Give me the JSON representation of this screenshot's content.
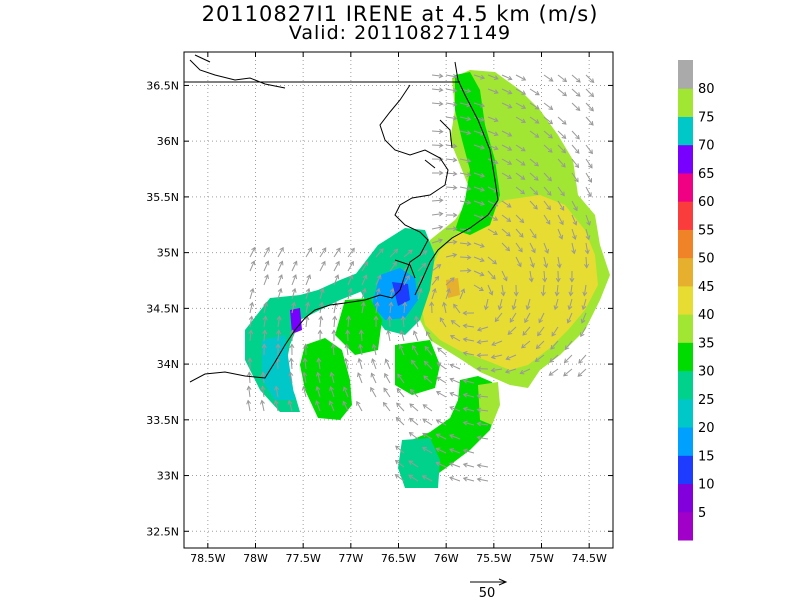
{
  "title": "20110827I1 IRENE at 4.5 km (m/s)",
  "subtitle": "Valid: 201108271149",
  "map": {
    "lon_range": [
      -78.75,
      -74.25
    ],
    "lat_range": [
      32.35,
      36.8
    ],
    "lon_ticks": [
      "78.5W",
      "78W",
      "77.5W",
      "77W",
      "76.5W",
      "76W",
      "75.5W",
      "75W",
      "74.5W"
    ],
    "lon_tick_values": [
      -78.5,
      -78.0,
      -77.5,
      -77.0,
      -76.5,
      -76.0,
      -75.5,
      -75.0,
      -74.5
    ],
    "lat_ticks": [
      "32.5N",
      "33N",
      "33.5N",
      "34N",
      "34.5N",
      "35N",
      "35.5N",
      "36N",
      "36.5N"
    ],
    "lat_tick_values": [
      32.5,
      33.0,
      33.5,
      34.0,
      34.5,
      35.0,
      35.5,
      36.0,
      36.5
    ],
    "grid": true
  },
  "colorbar": {
    "labels": [
      "5",
      "10",
      "15",
      "20",
      "25",
      "30",
      "35",
      "40",
      "45",
      "50",
      "55",
      "60",
      "65",
      "70",
      "75",
      "80"
    ],
    "colors": [
      "#a000c8",
      "#8200dc",
      "#1e3cff",
      "#00a0ff",
      "#00c8c8",
      "#00d28c",
      "#00dc00",
      "#a0e632",
      "#e6dc32",
      "#e6af2d",
      "#f08228",
      "#fa3c3c",
      "#f00082",
      "#7800ff",
      "#00c8c8",
      "#a0e632",
      "#aaaaaa"
    ]
  },
  "vector_reference": {
    "label": "50"
  }
}
